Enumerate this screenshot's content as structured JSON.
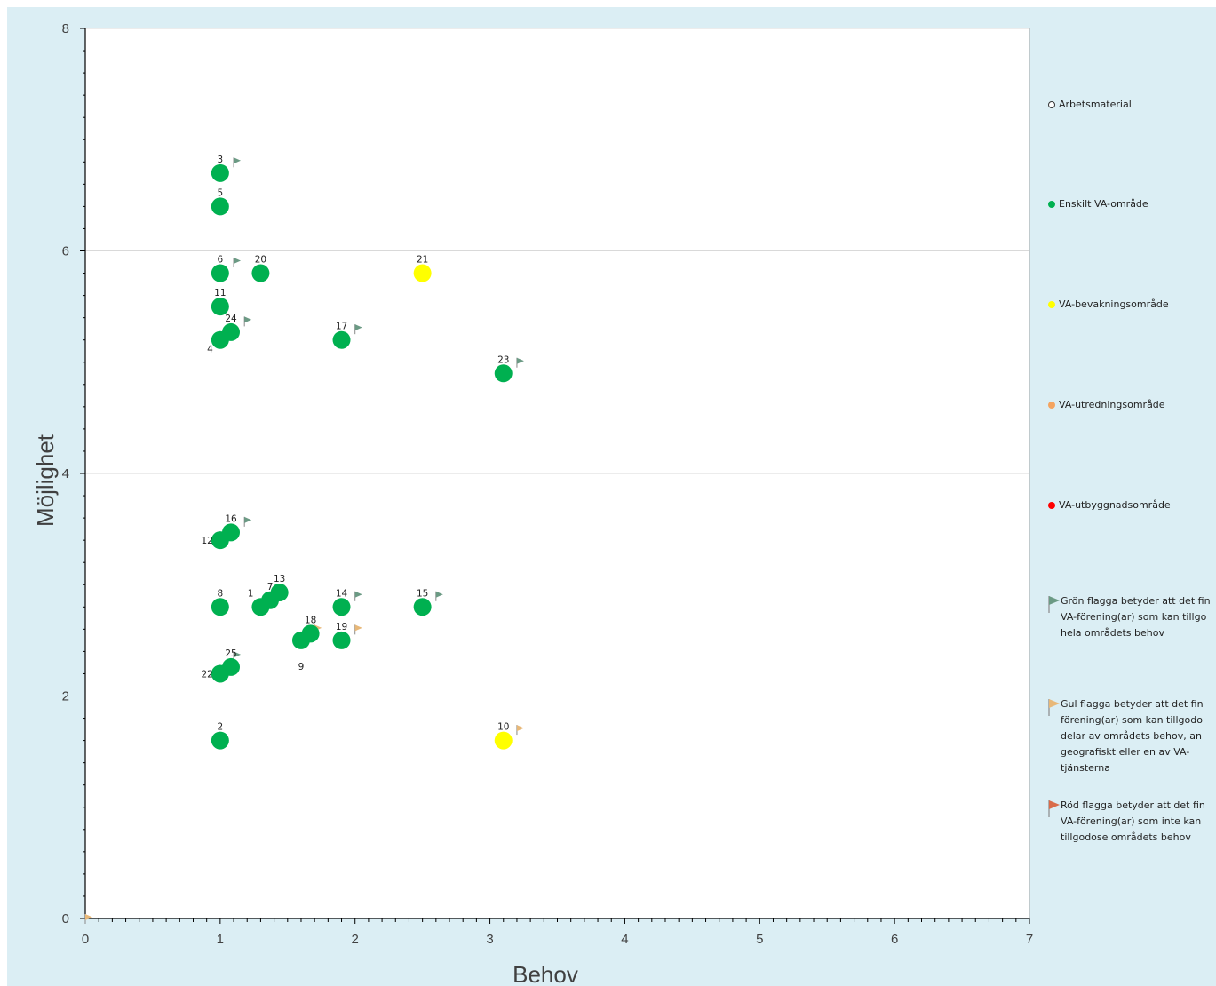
{
  "chart_data": {
    "type": "scatter",
    "xlabel": "Behov",
    "ylabel": "Möjlighet",
    "xlim": [
      0,
      7
    ],
    "ylim": [
      0,
      8
    ],
    "x_ticks": [
      "0",
      "1",
      "2",
      "3",
      "4",
      "5",
      "6",
      "7"
    ],
    "y_ticks": [
      "0",
      "2",
      "4",
      "6",
      "8"
    ],
    "grid": "horizontal",
    "legend_position": "right",
    "colors": {
      "green": "#00b050",
      "yellow": "#ffff00",
      "orange": "#f4a460",
      "red": "#ff0000",
      "flag_green": "#6b9a84",
      "flag_yellow": "#e8b878",
      "flag_red": "#d96c4a"
    },
    "series": [
      {
        "name": "Arbetsmaterial",
        "color": "#ffffff",
        "points": []
      },
      {
        "name": "Enskilt VA-område",
        "color": "#00b050",
        "points": [
          {
            "label": "1",
            "x": 1.3,
            "y": 2.8
          },
          {
            "label": "2",
            "x": 1.0,
            "y": 1.6
          },
          {
            "label": "3",
            "x": 1.0,
            "y": 6.7
          },
          {
            "label": "4",
            "x": 1.0,
            "y": 5.2
          },
          {
            "label": "5",
            "x": 1.0,
            "y": 6.4
          },
          {
            "label": "6",
            "x": 1.0,
            "y": 5.8
          },
          {
            "label": "7",
            "x": 1.37,
            "y": 2.86
          },
          {
            "label": "8",
            "x": 1.0,
            "y": 2.8
          },
          {
            "label": "9",
            "x": 1.6,
            "y": 2.5
          },
          {
            "label": "11",
            "x": 1.0,
            "y": 5.5
          },
          {
            "label": "12",
            "x": 1.0,
            "y": 3.4
          },
          {
            "label": "13",
            "x": 1.44,
            "y": 2.93
          },
          {
            "label": "14",
            "x": 1.9,
            "y": 2.8
          },
          {
            "label": "15",
            "x": 2.5,
            "y": 2.8
          },
          {
            "label": "16",
            "x": 1.08,
            "y": 3.47
          },
          {
            "label": "17",
            "x": 1.9,
            "y": 5.2
          },
          {
            "label": "18",
            "x": 1.67,
            "y": 2.56
          },
          {
            "label": "19",
            "x": 1.9,
            "y": 2.5
          },
          {
            "label": "20",
            "x": 1.3,
            "y": 5.8
          },
          {
            "label": "22",
            "x": 1.0,
            "y": 2.2
          },
          {
            "label": "23",
            "x": 3.1,
            "y": 4.9
          },
          {
            "label": "24",
            "x": 1.08,
            "y": 5.27
          },
          {
            "label": "25",
            "x": 1.08,
            "y": 2.26
          }
        ]
      },
      {
        "name": "VA-bevakningsområde",
        "color": "#ffff00",
        "points": [
          {
            "label": "10",
            "x": 3.1,
            "y": 1.6
          },
          {
            "label": "21",
            "x": 2.5,
            "y": 5.8
          }
        ]
      },
      {
        "name": "VA-utredningsområde",
        "color": "#f4a460",
        "points": []
      },
      {
        "name": "VA-utbyggnadsområde",
        "color": "#ff0000",
        "points": []
      }
    ],
    "flags": [
      {
        "x": 1.1,
        "y": 6.8,
        "type": "green"
      },
      {
        "x": 1.1,
        "y": 5.9,
        "type": "green"
      },
      {
        "x": 1.18,
        "y": 5.37,
        "type": "green"
      },
      {
        "x": 2.0,
        "y": 5.3,
        "type": "green"
      },
      {
        "x": 3.2,
        "y": 5.0,
        "type": "green"
      },
      {
        "x": 1.18,
        "y": 3.57,
        "type": "green"
      },
      {
        "x": 2.0,
        "y": 2.9,
        "type": "green"
      },
      {
        "x": 2.6,
        "y": 2.9,
        "type": "green"
      },
      {
        "x": 1.1,
        "y": 2.36,
        "type": "green"
      },
      {
        "x": 1.7,
        "y": 2.6,
        "type": "yellow"
      },
      {
        "x": 2.0,
        "y": 2.6,
        "type": "yellow"
      },
      {
        "x": 1.45,
        "y": 2.9,
        "type": "yellow"
      },
      {
        "x": 3.2,
        "y": 1.7,
        "type": "yellow"
      },
      {
        "x": 0.0,
        "y": 0.0,
        "type": "yellow"
      }
    ]
  },
  "legend": {
    "items": [
      {
        "label": "Arbetsmaterial",
        "marker": "hollow-circle"
      },
      {
        "label": "Enskilt VA-område",
        "marker": "green-circle"
      },
      {
        "label": "VA-bevakningsområde",
        "marker": "yellow-circle"
      },
      {
        "label": "VA-utredningsområde",
        "marker": "orange-circle"
      },
      {
        "label": "VA-utbyggnadsområde",
        "marker": "red-circle"
      }
    ],
    "flags": [
      {
        "marker": "green-flag-icon",
        "lines": [
          "Grön flagga betyder att det fin",
          "VA-förening(ar) som kan tillgo",
          "hela områdets behov"
        ]
      },
      {
        "marker": "yellow-flag-icon",
        "lines": [
          "Gul flagga betyder att det fin",
          "förening(ar) som kan tillgodo",
          "delar av områdets behov, an",
          "geografiskt eller en av VA-",
          "tjänsterna"
        ]
      },
      {
        "marker": "red-flag-icon",
        "lines": [
          "Röd flagga betyder att det fin",
          "VA-förening(ar) som inte kan",
          "tillgodose områdets behov"
        ]
      }
    ]
  }
}
